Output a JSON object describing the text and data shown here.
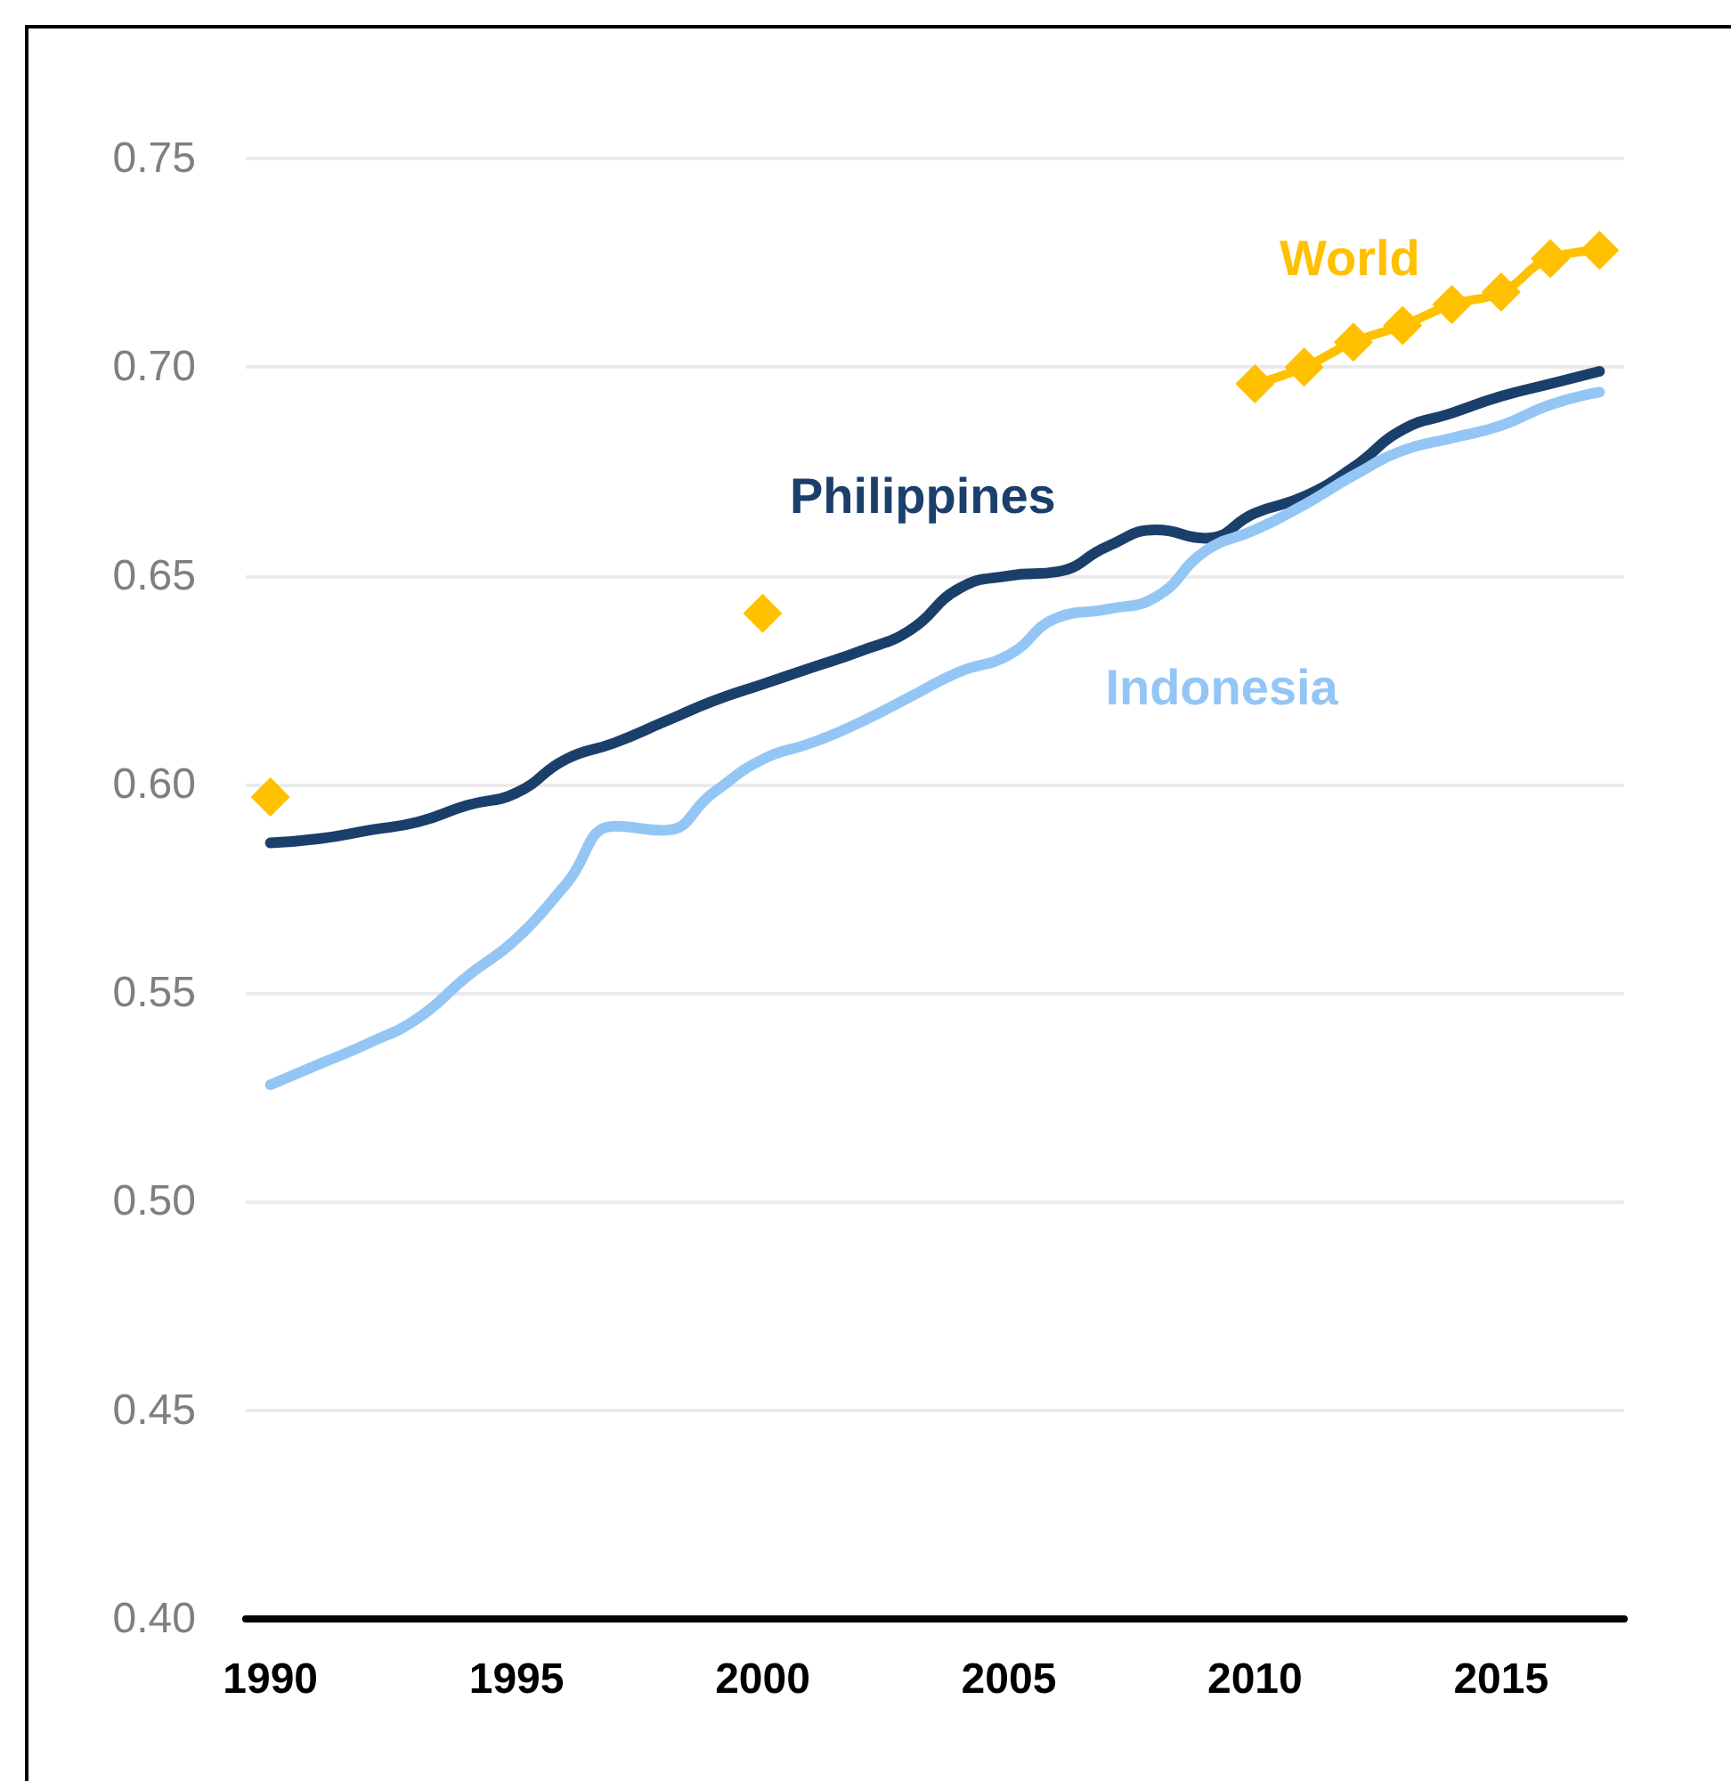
{
  "chart_data": {
    "type": "line",
    "x": [
      1990,
      1991,
      1992,
      1993,
      1994,
      1995,
      1996,
      1997,
      1998,
      1999,
      2000,
      2001,
      2002,
      2003,
      2004,
      2005,
      2006,
      2007,
      2008,
      2009,
      2010,
      2011,
      2012,
      2013,
      2014,
      2015,
      2016,
      2017
    ],
    "series": [
      {
        "name": "Philippines",
        "color": "#1b3f6b",
        "marker": "none",
        "values": [
          0.586,
          0.587,
          0.589,
          0.591,
          0.595,
          0.598,
          0.606,
          0.61,
          0.615,
          0.62,
          0.624,
          0.628,
          0.632,
          0.637,
          0.647,
          0.65,
          0.651,
          0.657,
          0.661,
          0.659,
          0.665,
          0.669,
          0.676,
          0.685,
          0.689,
          0.693,
          0.696,
          0.699
        ]
      },
      {
        "name": "Indonesia",
        "color": "#94c6f5",
        "marker": "none",
        "values": [
          0.528,
          0.533,
          0.538,
          0.544,
          0.554,
          0.563,
          0.576,
          0.59,
          0.589,
          0.598,
          0.606,
          0.61,
          0.615,
          0.621,
          0.627,
          0.631,
          0.64,
          0.642,
          0.645,
          0.656,
          0.661,
          0.667,
          0.674,
          0.68,
          0.683,
          0.686,
          0.691,
          0.694
        ]
      },
      {
        "name": "World",
        "color": "#ffc000",
        "marker": "diamond",
        "values": [
          0.597,
          null,
          null,
          null,
          null,
          null,
          null,
          null,
          null,
          null,
          0.641,
          null,
          null,
          null,
          null,
          null,
          null,
          null,
          null,
          null,
          0.696,
          0.7,
          0.706,
          0.71,
          0.715,
          0.718,
          0.726,
          0.728
        ]
      }
    ],
    "xlim": [
      1989.5,
      2017.5
    ],
    "xticks": [
      1990,
      1995,
      2000,
      2005,
      2010,
      2015
    ],
    "ylim": [
      0.4,
      0.75
    ],
    "yticks": [
      {
        "value": 0.4,
        "label": "0.40"
      },
      {
        "value": 0.45,
        "label": "0.45"
      },
      {
        "value": 0.5,
        "label": "0.50"
      },
      {
        "value": 0.55,
        "label": "0.55"
      },
      {
        "value": 0.6,
        "label": "0.60"
      },
      {
        "value": 0.65,
        "label": "0.65"
      },
      {
        "value": 0.7,
        "label": "0.70"
      },
      {
        "value": 0.75,
        "label": "0.75"
      }
    ],
    "grid": "y",
    "legend": false,
    "line_style": "solid"
  }
}
